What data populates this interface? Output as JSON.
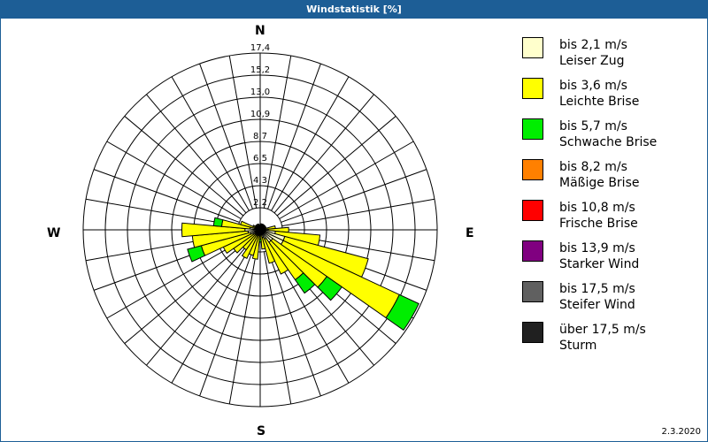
{
  "window": {
    "title": "Windstatistik [%]"
  },
  "compass": {
    "north": "N",
    "east": "E",
    "south": "S",
    "west": "W"
  },
  "date": "2.3.2020",
  "legend": [
    {
      "speed": "bis 2,1 m/s",
      "name": "Leiser Zug",
      "color": "#ffffcc"
    },
    {
      "speed": "bis 3,6 m/s",
      "name": "Leichte Brise",
      "color": "#ffff00"
    },
    {
      "speed": "bis 5,7 m/s",
      "name": "Schwache Brise",
      "color": "#00ee00"
    },
    {
      "speed": "bis 8,2 m/s",
      "name": "Mäßige Brise",
      "color": "#ff8000"
    },
    {
      "speed": "bis 10,8 m/s",
      "name": "Frische Brise",
      "color": "#ff0000"
    },
    {
      "speed": "bis 13,9 m/s",
      "name": "Starker Wind",
      "color": "#800080"
    },
    {
      "speed": "bis 17,5 m/s",
      "name": "Steifer Wind",
      "color": "#606060"
    },
    {
      "speed": "über 17,5 m/s",
      "name": "Sturm",
      "color": "#202020"
    }
  ],
  "chart_data": {
    "type": "windrose",
    "title": "Windstatistik [%]",
    "unit": "%",
    "ring_labels": [
      "2,2",
      "4,3",
      "6,5",
      "8,7",
      "10,9",
      "13,0",
      "15,2",
      "17,4"
    ],
    "rmax": 17.4,
    "sector_width_deg": 10,
    "series_names": [
      "Leiser Zug",
      "Leichte Brise",
      "Schwache Brise",
      "Mäßige Brise",
      "Frische Brise",
      "Starker Wind",
      "Steifer Wind",
      "Sturm"
    ],
    "sectors": [
      {
        "dir": 0,
        "values": [
          0.3,
          0.2,
          0,
          0,
          0,
          0,
          0,
          0
        ]
      },
      {
        "dir": 10,
        "values": [
          0.3,
          0.3,
          0,
          0,
          0,
          0,
          0,
          0
        ]
      },
      {
        "dir": 20,
        "values": [
          0.3,
          0.3,
          0,
          0,
          0,
          0,
          0,
          0
        ]
      },
      {
        "dir": 30,
        "values": [
          0.3,
          0.3,
          0,
          0,
          0,
          0,
          0,
          0
        ]
      },
      {
        "dir": 40,
        "values": [
          0.3,
          0.3,
          0,
          0,
          0,
          0,
          0,
          0
        ]
      },
      {
        "dir": 50,
        "values": [
          0.3,
          0.3,
          0,
          0,
          0,
          0,
          0,
          0
        ]
      },
      {
        "dir": 60,
        "values": [
          0.3,
          0.3,
          0,
          0,
          0,
          0,
          0,
          0
        ]
      },
      {
        "dir": 70,
        "values": [
          0.3,
          0.3,
          0,
          0,
          0,
          0,
          0,
          0
        ]
      },
      {
        "dir": 80,
        "values": [
          0.5,
          1.0,
          0,
          0,
          0,
          0,
          0,
          0
        ]
      },
      {
        "dir": 90,
        "values": [
          0.8,
          2.0,
          0,
          0,
          0,
          0,
          0,
          0
        ]
      },
      {
        "dir": 100,
        "values": [
          1.5,
          4.4,
          0,
          0,
          0,
          0,
          0,
          0
        ]
      },
      {
        "dir": 110,
        "values": [
          2.5,
          8.5,
          0,
          0,
          0,
          0,
          0,
          0
        ]
      },
      {
        "dir": 120,
        "values": [
          2.5,
          12.6,
          2.1,
          0,
          0,
          0,
          0,
          0
        ]
      },
      {
        "dir": 130,
        "values": [
          1.5,
          6.5,
          1.8,
          0,
          0,
          0,
          0,
          0
        ]
      },
      {
        "dir": 140,
        "values": [
          1.5,
          4.5,
          1.6,
          0,
          0,
          0,
          0,
          0
        ]
      },
      {
        "dir": 150,
        "values": [
          1.0,
          3.8,
          0,
          0,
          0,
          0,
          0,
          0
        ]
      },
      {
        "dir": 160,
        "values": [
          0.8,
          2.6,
          0,
          0,
          0,
          0,
          0,
          0
        ]
      },
      {
        "dir": 170,
        "values": [
          0.5,
          1.4,
          0,
          0,
          0,
          0,
          0,
          0
        ]
      },
      {
        "dir": 180,
        "values": [
          0.3,
          0.6,
          0.3,
          0,
          0,
          0,
          0,
          0
        ]
      },
      {
        "dir": 190,
        "values": [
          0.5,
          2.4,
          0,
          0,
          0,
          0,
          0,
          0
        ]
      },
      {
        "dir": 200,
        "values": [
          0.6,
          2.0,
          0,
          0,
          0,
          0,
          0,
          0
        ]
      },
      {
        "dir": 210,
        "values": [
          0.6,
          2.5,
          0,
          0,
          0,
          0,
          0,
          0
        ]
      },
      {
        "dir": 220,
        "values": [
          0.6,
          1.8,
          0,
          0,
          0,
          0,
          0,
          0
        ]
      },
      {
        "dir": 230,
        "values": [
          0.6,
          2.6,
          0,
          0,
          0,
          0,
          0,
          0
        ]
      },
      {
        "dir": 240,
        "values": [
          0.8,
          3.2,
          0,
          0,
          0,
          0,
          0,
          0
        ]
      },
      {
        "dir": 250,
        "values": [
          1.0,
          5.0,
          1.4,
          0,
          0,
          0,
          0,
          0
        ]
      },
      {
        "dir": 260,
        "values": [
          1.2,
          5.5,
          0,
          0,
          0,
          0,
          0,
          0
        ]
      },
      {
        "dir": 270,
        "values": [
          1.5,
          6.2,
          0,
          0,
          0,
          0,
          0,
          0
        ]
      },
      {
        "dir": 280,
        "values": [
          1.0,
          2.8,
          0.8,
          0,
          0,
          0,
          0,
          0
        ]
      },
      {
        "dir": 290,
        "values": [
          0.5,
          1.5,
          0,
          0,
          0,
          0,
          0,
          0
        ]
      },
      {
        "dir": 300,
        "values": [
          0.3,
          0.5,
          0,
          0,
          0,
          0,
          0,
          0
        ]
      },
      {
        "dir": 310,
        "values": [
          0.3,
          0.3,
          0,
          0,
          0,
          0,
          0,
          0
        ]
      },
      {
        "dir": 320,
        "values": [
          0.3,
          0.3,
          0,
          0,
          0,
          0,
          0,
          0
        ]
      },
      {
        "dir": 330,
        "values": [
          0.3,
          0.3,
          0,
          0,
          0,
          0,
          0,
          0
        ]
      },
      {
        "dir": 340,
        "values": [
          0.3,
          0.3,
          0,
          0,
          0,
          0,
          0,
          0
        ]
      },
      {
        "dir": 350,
        "values": [
          0.3,
          0.2,
          0,
          0,
          0,
          0,
          0,
          0
        ]
      }
    ]
  }
}
